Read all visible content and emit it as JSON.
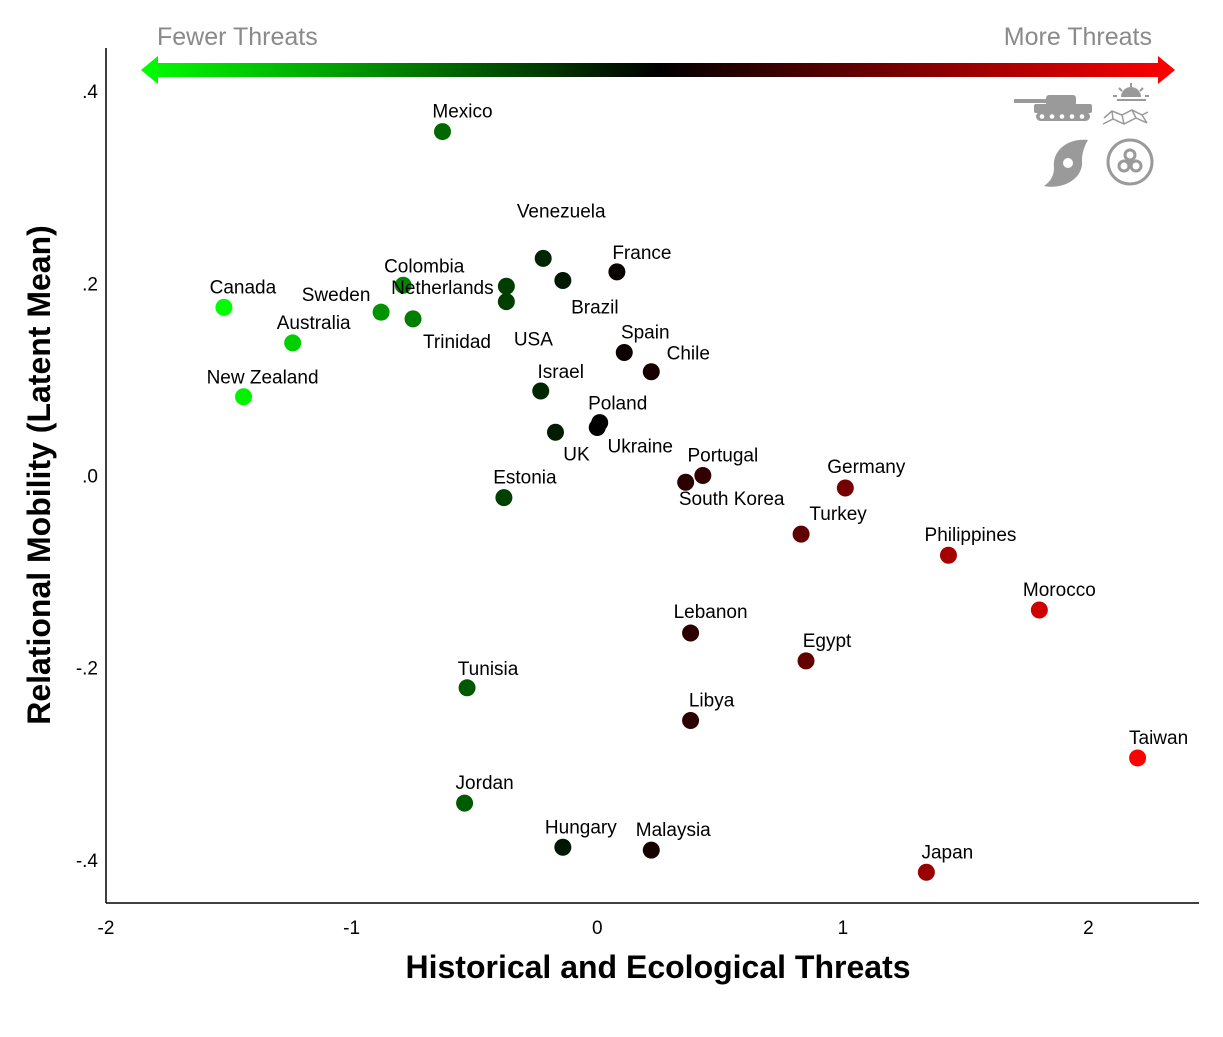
{
  "chart_data": {
    "type": "scatter",
    "xlabel": "Historical and Ecological Threats",
    "ylabel": "Relational Mobility (Latent Mean)",
    "xlim": [
      -2,
      2.45
    ],
    "ylim": [
      -0.445,
      0.445
    ],
    "x_ticks": [
      -2,
      -1,
      0,
      1,
      2
    ],
    "x_tick_labels": [
      "-2",
      "-1",
      "0",
      "1",
      "2"
    ],
    "y_ticks": [
      0.4,
      0.2,
      0.0,
      -0.2,
      -0.4
    ],
    "y_tick_labels": [
      ".4",
      ".2",
      ".0",
      "-.2",
      "-.4"
    ],
    "grid": false,
    "threat_scale": {
      "left_label": "Fewer Threats",
      "right_label": "More Threats",
      "gradient_colors": [
        "#00ff00",
        "#000000",
        "#ff0000"
      ]
    },
    "threat_icons": [
      "tank-icon",
      "sun-icon",
      "hurricane-icon",
      "biohazard-icon"
    ],
    "points": [
      {
        "label": "Mexico",
        "x": -0.63,
        "y": 0.358
      },
      {
        "label": "Venezuela",
        "x": -0.22,
        "y": 0.226
      },
      {
        "label": "France",
        "x": 0.08,
        "y": 0.212
      },
      {
        "label": "Colombia",
        "x": -0.79,
        "y": 0.198
      },
      {
        "label": "Canada",
        "x": -1.52,
        "y": 0.175
      },
      {
        "label": "Sweden",
        "x": -0.88,
        "y": 0.17
      },
      {
        "label": "Netherlands",
        "x": -0.37,
        "y": 0.197
      },
      {
        "label": "Brazil",
        "x": -0.14,
        "y": 0.203
      },
      {
        "label": "USA",
        "x": -0.37,
        "y": 0.181
      },
      {
        "label": "Trinidad",
        "x": -0.75,
        "y": 0.163
      },
      {
        "label": "Australia",
        "x": -1.24,
        "y": 0.138
      },
      {
        "label": "Spain",
        "x": 0.11,
        "y": 0.128
      },
      {
        "label": "Chile",
        "x": 0.22,
        "y": 0.108
      },
      {
        "label": "New Zealand",
        "x": -1.44,
        "y": 0.082
      },
      {
        "label": "Israel",
        "x": -0.23,
        "y": 0.088
      },
      {
        "label": "Poland",
        "x": 0.01,
        "y": 0.055
      },
      {
        "label": "Ukraine",
        "x": 0.0,
        "y": 0.05
      },
      {
        "label": "UK",
        "x": -0.17,
        "y": 0.045
      },
      {
        "label": "Portugal",
        "x": 0.43,
        "y": 0.0
      },
      {
        "label": "South Korea",
        "x": 0.36,
        "y": -0.007
      },
      {
        "label": "Estonia",
        "x": -0.38,
        "y": -0.023
      },
      {
        "label": "Germany",
        "x": 1.01,
        "y": -0.013
      },
      {
        "label": "Turkey",
        "x": 0.83,
        "y": -0.061
      },
      {
        "label": "Philippines",
        "x": 1.43,
        "y": -0.083
      },
      {
        "label": "Morocco",
        "x": 1.8,
        "y": -0.14
      },
      {
        "label": "Lebanon",
        "x": 0.38,
        "y": -0.164
      },
      {
        "label": "Egypt",
        "x": 0.85,
        "y": -0.193
      },
      {
        "label": "Tunisia",
        "x": -0.53,
        "y": -0.221
      },
      {
        "label": "Libya",
        "x": 0.38,
        "y": -0.255
      },
      {
        "label": "Taiwan",
        "x": 2.2,
        "y": -0.294
      },
      {
        "label": "Jordan",
        "x": -0.54,
        "y": -0.341
      },
      {
        "label": "Hungary",
        "x": -0.14,
        "y": -0.387
      },
      {
        "label": "Malaysia",
        "x": 0.22,
        "y": -0.39
      },
      {
        "label": "Japan",
        "x": 1.34,
        "y": -0.413
      }
    ]
  }
}
